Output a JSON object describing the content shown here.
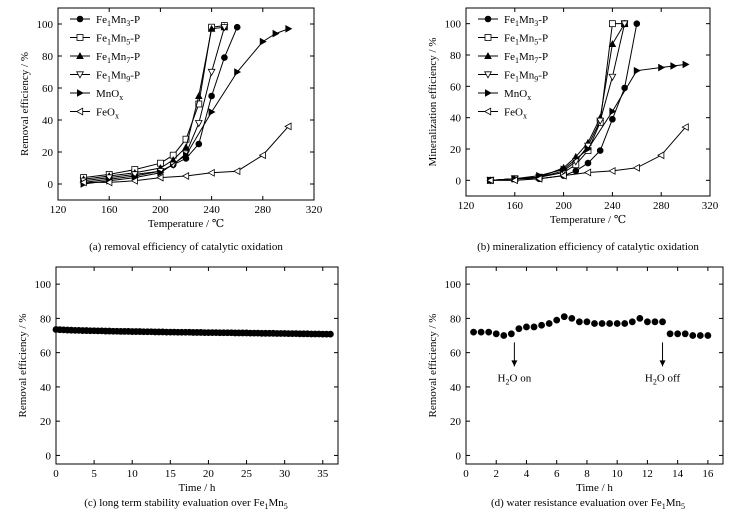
{
  "panels": [
    {
      "caption": "(a) removal efficiency of catalytic oxidation",
      "chart_data": {
        "type": "line",
        "xlabel": "Temperature / ℃",
        "ylabel": "Removal efficiency / %",
        "xlim": [
          120,
          320
        ],
        "ylim": [
          -10,
          110
        ],
        "xticks": [
          120,
          160,
          200,
          240,
          280,
          320
        ],
        "yticks": [
          0,
          20,
          40,
          60,
          80,
          100
        ],
        "grid": false,
        "legend_position": "top-left",
        "series": [
          {
            "name": "Fe1Mn3-P",
            "label_base": "Fe",
            "label_sub1": "1",
            "label_mid": "Mn",
            "label_sub2": "3",
            "label_suffix": "-P",
            "marker": "circle-filled",
            "x": [
              140,
              160,
              180,
              200,
              210,
              220,
              230,
              240,
              250,
              260
            ],
            "y": [
              1,
              3,
              5,
              8,
              12,
              16,
              25,
              55,
              79,
              98
            ]
          },
          {
            "name": "Fe1Mn5-P",
            "label_base": "Fe",
            "label_sub1": "1",
            "label_mid": "Mn",
            "label_sub2": "5",
            "label_suffix": "-P",
            "marker": "square-open",
            "x": [
              140,
              160,
              180,
              200,
              210,
              220,
              230,
              240,
              250
            ],
            "y": [
              4,
              6,
              9,
              13,
              18,
              28,
              50,
              98,
              99
            ]
          },
          {
            "name": "Fe1Mn7-P",
            "label_base": "Fe",
            "label_sub1": "1",
            "label_mid": "Mn",
            "label_sub2": "7",
            "label_suffix": "-P",
            "marker": "triangle-up-filled",
            "x": [
              140,
              160,
              180,
              200,
              210,
              220,
              230,
              240,
              250
            ],
            "y": [
              3,
              5,
              7,
              10,
              15,
              23,
              55,
              97,
              98
            ]
          },
          {
            "name": "Fe1Mn9-P",
            "label_base": "Fe",
            "label_sub1": "1",
            "label_mid": "Mn",
            "label_sub2": "9",
            "label_suffix": "-P",
            "marker": "triangle-down-open",
            "x": [
              140,
              160,
              180,
              200,
              210,
              220,
              230,
              240,
              250
            ],
            "y": [
              2,
              4,
              6,
              8,
              12,
              19,
              38,
              70,
              98
            ]
          },
          {
            "name": "MnOx",
            "label_base": "MnO",
            "label_sub1": "x",
            "label_mid": "",
            "label_sub2": "",
            "label_suffix": "",
            "marker": "triangle-right-filled",
            "x": [
              140,
              160,
              180,
              200,
              220,
              240,
              260,
              280,
              290,
              300
            ],
            "y": [
              0,
              2,
              4,
              7,
              18,
              45,
              70,
              89,
              94,
              97
            ]
          },
          {
            "name": "FeOx",
            "label_base": "FeO",
            "label_sub1": "x",
            "label_mid": "",
            "label_sub2": "",
            "label_suffix": "",
            "marker": "triangle-left-open",
            "x": [
              140,
              160,
              180,
              200,
              220,
              240,
              260,
              280,
              300
            ],
            "y": [
              1,
              1,
              2,
              4,
              5,
              7,
              8,
              18,
              36
            ]
          }
        ]
      }
    },
    {
      "caption": "(b) mineralization efficiency of catalytic oxidation",
      "chart_data": {
        "type": "line",
        "xlabel": "Temperature / ℃",
        "ylabel": "Mineralization efficiency / %",
        "xlim": [
          120,
          320
        ],
        "ylim": [
          -10,
          110
        ],
        "xticks": [
          120,
          160,
          200,
          240,
          280,
          320
        ],
        "yticks": [
          0,
          20,
          40,
          60,
          80,
          100
        ],
        "grid": false,
        "legend_position": "top-left",
        "series": [
          {
            "name": "Fe1Mn3-P",
            "label_base": "Fe",
            "label_sub1": "1",
            "label_mid": "Mn",
            "label_sub2": "3",
            "label_suffix": "-P",
            "marker": "circle-filled",
            "x": [
              140,
              160,
              180,
              200,
              210,
              220,
              230,
              240,
              250,
              260
            ],
            "y": [
              0,
              1,
              1,
              3,
              6,
              11,
              19,
              39,
              59,
              100
            ]
          },
          {
            "name": "Fe1Mn5-P",
            "label_base": "Fe",
            "label_sub1": "1",
            "label_mid": "Mn",
            "label_sub2": "5",
            "label_suffix": "-P",
            "marker": "square-open",
            "x": [
              140,
              160,
              180,
              200,
              210,
              220,
              230,
              240,
              250
            ],
            "y": [
              0,
              1,
              2,
              5,
              10,
              19,
              37,
              100,
              100
            ]
          },
          {
            "name": "Fe1Mn7-P",
            "label_base": "Fe",
            "label_sub1": "1",
            "label_mid": "Mn",
            "label_sub2": "7",
            "label_suffix": "-P",
            "marker": "triangle-up-filled",
            "x": [
              140,
              160,
              180,
              200,
              210,
              220,
              230,
              240,
              250
            ],
            "y": [
              0,
              1,
              2,
              8,
              15,
              24,
              40,
              87,
              100
            ]
          },
          {
            "name": "Fe1Mn9-P",
            "label_base": "Fe",
            "label_sub1": "1",
            "label_mid": "Mn",
            "label_sub2": "9",
            "label_suffix": "-P",
            "marker": "triangle-down-open",
            "x": [
              140,
              160,
              180,
              200,
              210,
              220,
              230,
              240,
              250
            ],
            "y": [
              0,
              1,
              2,
              6,
              12,
              22,
              38,
              66,
              100
            ]
          },
          {
            "name": "MnOx",
            "label_base": "MnO",
            "label_sub1": "x",
            "label_mid": "",
            "label_sub2": "",
            "label_suffix": "",
            "marker": "triangle-right-filled",
            "x": [
              140,
              160,
              180,
              200,
              220,
              240,
              260,
              280,
              290,
              300
            ],
            "y": [
              0,
              1,
              3,
              7,
              20,
              44,
              70,
              72,
              73,
              74
            ]
          },
          {
            "name": "FeOx",
            "label_base": "FeO",
            "label_sub1": "x",
            "label_mid": "",
            "label_sub2": "",
            "label_suffix": "",
            "marker": "triangle-left-open",
            "x": [
              140,
              160,
              180,
              200,
              220,
              240,
              260,
              280,
              300
            ],
            "y": [
              0,
              0,
              1,
              3,
              5,
              6,
              8,
              16,
              34
            ]
          }
        ]
      }
    },
    {
      "caption": "(c) long term stability evaluation over Fe1Mn5",
      "caption_main": "(c) long term stability evaluation over Fe",
      "caption_sub1": "1",
      "caption_mid": "Mn",
      "caption_sub2": "5",
      "chart_data": {
        "type": "scatter",
        "xlabel": "Time / h",
        "ylabel": "Removal efficiency / %",
        "xlim": [
          0,
          37
        ],
        "ylim": [
          -5,
          110
        ],
        "xticks": [
          0,
          5,
          10,
          15,
          20,
          25,
          30,
          35
        ],
        "yticks": [
          0,
          20,
          40,
          60,
          80,
          100
        ],
        "grid": false,
        "series": [
          {
            "marker": "circle-filled",
            "x": [
              0,
              0.5,
              1,
              1.5,
              2,
              2.5,
              3,
              3.5,
              4,
              4.5,
              5,
              5.5,
              6,
              6.5,
              7,
              7.5,
              8,
              8.5,
              9,
              9.5,
              10,
              10.5,
              11,
              11.5,
              12,
              12.5,
              13,
              13.5,
              14,
              14.5,
              15,
              15.5,
              16,
              16.5,
              17,
              17.5,
              18,
              18.5,
              19,
              19.5,
              20,
              20.5,
              21,
              21.5,
              22,
              22.5,
              23,
              23.5,
              24,
              24.5,
              25,
              25.5,
              26,
              26.5,
              27,
              27.5,
              28,
              28.5,
              29,
              29.5,
              30,
              30.5,
              31,
              31.5,
              32,
              32.5,
              33,
              33.5,
              34,
              34.5,
              35,
              35.5,
              36
            ],
            "y": [
              73.5,
              73.4,
              73.3,
              73.2,
              73.1,
              73.0,
              73.0,
              72.9,
              72.9,
              72.8,
              72.8,
              72.7,
              72.7,
              72.6,
              72.6,
              72.5,
              72.5,
              72.4,
              72.4,
              72.4,
              72.3,
              72.3,
              72.3,
              72.2,
              72.2,
              72.2,
              72.1,
              72.1,
              72.1,
              72.0,
              72.0,
              72.0,
              71.9,
              71.9,
              71.9,
              71.9,
              71.8,
              71.8,
              71.8,
              71.7,
              71.7,
              71.7,
              71.7,
              71.6,
              71.6,
              71.6,
              71.6,
              71.5,
              71.5,
              71.5,
              71.5,
              71.4,
              71.4,
              71.4,
              71.3,
              71.3,
              71.3,
              71.3,
              71.2,
              71.2,
              71.2,
              71.1,
              71.1,
              71.1,
              71.0,
              71.0,
              71.0,
              70.9,
              70.9,
              70.9,
              70.8,
              70.8,
              70.8
            ]
          }
        ]
      }
    },
    {
      "caption": "(d) water resistance evaluation over Fe1Mn5",
      "caption_main": "(d) water resistance evaluation over Fe",
      "caption_sub1": "1",
      "caption_mid": "Mn",
      "caption_sub2": "5",
      "chart_data": {
        "type": "scatter",
        "xlabel": "Time / h",
        "ylabel": "Removal efficiency / %",
        "xlim": [
          0,
          17
        ],
        "ylim": [
          -5,
          110
        ],
        "xticks": [
          0,
          2,
          4,
          6,
          8,
          10,
          12,
          14,
          16
        ],
        "yticks": [
          0,
          20,
          40,
          60,
          80,
          100
        ],
        "grid": false,
        "series": [
          {
            "marker": "circle-filled",
            "x": [
              0.5,
              1,
              1.5,
              2,
              2.5,
              3,
              3.5,
              4,
              4.5,
              5,
              5.5,
              6,
              6.5,
              7,
              7.5,
              8,
              8.5,
              9,
              9.5,
              10,
              10.5,
              11,
              11.5,
              12,
              12.5,
              13,
              13.5,
              14,
              14.5,
              15,
              15.5,
              16
            ],
            "y": [
              72,
              72,
              72,
              71,
              70,
              71,
              74,
              75,
              75,
              76,
              77,
              79,
              81,
              80,
              78,
              78,
              77,
              77,
              77,
              77,
              77,
              78,
              80,
              78,
              78,
              78,
              71,
              71,
              71,
              70,
              70,
              70
            ]
          }
        ],
        "annotations": [
          {
            "base": "H",
            "sub": "2",
            "rest": "O on",
            "x": 3.2
          },
          {
            "base": "H",
            "sub": "2",
            "rest": "O off",
            "x": 13.0
          }
        ]
      }
    }
  ]
}
